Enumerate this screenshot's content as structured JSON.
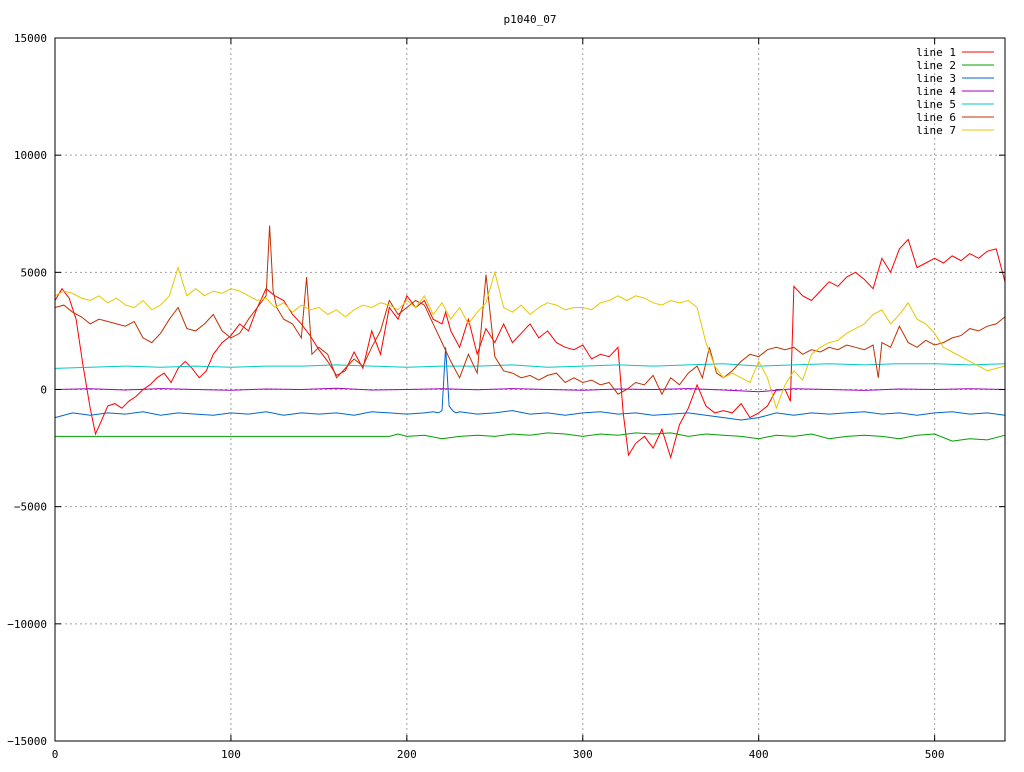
{
  "chart_data": {
    "type": "line",
    "title": "p1040_07",
    "xlabel": "",
    "ylabel": "",
    "xlim": [
      0,
      540
    ],
    "ylim": [
      -15000,
      15000
    ],
    "xticks": [
      0,
      100,
      200,
      300,
      400,
      500
    ],
    "yticks": [
      -15000,
      -10000,
      -5000,
      0,
      5000,
      10000,
      15000
    ],
    "grid": true,
    "legend_position": "top-right",
    "series": [
      {
        "name": "line 1",
        "color": "#ff0000",
        "x": [
          0,
          4,
          8,
          12,
          16,
          20,
          23,
          26,
          30,
          34,
          38,
          42,
          46,
          50,
          54,
          58,
          62,
          66,
          70,
          74,
          78,
          82,
          86,
          90,
          95,
          100,
          105,
          110,
          115,
          120,
          125,
          130,
          135,
          140,
          145,
          150,
          155,
          160,
          165,
          170,
          175,
          180,
          185,
          190,
          195,
          200,
          205,
          210,
          215,
          220,
          222,
          225,
          230,
          235,
          240,
          245,
          250,
          255,
          260,
          265,
          270,
          275,
          280,
          285,
          290,
          295,
          300,
          305,
          310,
          315,
          320,
          323,
          326,
          330,
          335,
          340,
          345,
          350,
          355,
          360,
          365,
          370,
          375,
          380,
          385,
          390,
          395,
          400,
          405,
          410,
          415,
          418,
          420,
          425,
          430,
          435,
          440,
          445,
          450,
          455,
          460,
          465,
          470,
          475,
          480,
          485,
          490,
          495,
          500,
          505,
          510,
          515,
          520,
          525,
          530,
          535,
          540
        ],
        "y": [
          3800,
          4300,
          3900,
          3000,
          1000,
          -800,
          -1900,
          -1400,
          -700,
          -600,
          -800,
          -500,
          -300,
          0,
          200,
          500,
          700,
          300,
          900,
          1200,
          900,
          500,
          800,
          1500,
          2000,
          2300,
          2800,
          2500,
          3500,
          4300,
          4000,
          3800,
          3200,
          2800,
          2300,
          1700,
          1200,
          600,
          800,
          1600,
          900,
          2500,
          1500,
          3500,
          3000,
          4000,
          3500,
          3800,
          3000,
          2800,
          3300,
          2500,
          1800,
          3000,
          1500,
          2600,
          2000,
          2800,
          2000,
          2400,
          2800,
          2200,
          2500,
          2000,
          1800,
          1700,
          1900,
          1300,
          1500,
          1400,
          1800,
          -1000,
          -2800,
          -2300,
          -2000,
          -2500,
          -1700,
          -2900,
          -1500,
          -800,
          200,
          -700,
          -1000,
          -900,
          -1000,
          -600,
          -1200,
          -1000,
          -700,
          0,
          0,
          -500,
          4400,
          4000,
          3800,
          4200,
          4600,
          4400,
          4800,
          5000,
          4700,
          4300,
          5600,
          5000,
          6000,
          6400,
          5200,
          5400,
          5600,
          5400,
          5700,
          5500,
          5800,
          5600,
          5900,
          6000,
          4600
        ]
      },
      {
        "name": "line 2",
        "color": "#00a000",
        "x": [
          0,
          20,
          40,
          60,
          80,
          100,
          120,
          140,
          160,
          180,
          190,
          195,
          200,
          210,
          220,
          230,
          240,
          250,
          260,
          270,
          280,
          290,
          300,
          310,
          320,
          330,
          340,
          350,
          360,
          370,
          380,
          390,
          400,
          410,
          420,
          430,
          440,
          450,
          460,
          470,
          480,
          490,
          500,
          510,
          520,
          530,
          540
        ],
        "y": [
          -2000,
          -2000,
          -2000,
          -2000,
          -2000,
          -2000,
          -2000,
          -2000,
          -2000,
          -2000,
          -2000,
          -1900,
          -2000,
          -1950,
          -2100,
          -2000,
          -1950,
          -2000,
          -1900,
          -1950,
          -1850,
          -1900,
          -2000,
          -1900,
          -1950,
          -1850,
          -1900,
          -1850,
          -2000,
          -1900,
          -1950,
          -2000,
          -2100,
          -1950,
          -2000,
          -1900,
          -2100,
          -2000,
          -1950,
          -2000,
          -2100,
          -1950,
          -1900,
          -2200,
          -2100,
          -2150,
          -1950
        ]
      },
      {
        "name": "line 3",
        "color": "#0066cc",
        "x": [
          0,
          10,
          20,
          30,
          40,
          50,
          60,
          70,
          80,
          90,
          100,
          110,
          120,
          130,
          140,
          150,
          160,
          170,
          180,
          190,
          200,
          210,
          215,
          218,
          220,
          222,
          224,
          226,
          228,
          230,
          240,
          250,
          260,
          270,
          280,
          290,
          300,
          310,
          320,
          330,
          340,
          350,
          360,
          370,
          380,
          390,
          400,
          410,
          420,
          430,
          440,
          450,
          460,
          470,
          480,
          490,
          500,
          510,
          520,
          530,
          540
        ],
        "y": [
          -1200,
          -1000,
          -1100,
          -1000,
          -1050,
          -950,
          -1100,
          -1000,
          -1050,
          -1100,
          -1000,
          -1050,
          -950,
          -1100,
          -1000,
          -1050,
          -1000,
          -1100,
          -950,
          -1000,
          -1050,
          -1000,
          -950,
          -1000,
          -900,
          1800,
          -700,
          -900,
          -1000,
          -950,
          -1050,
          -1000,
          -900,
          -1050,
          -1000,
          -1100,
          -1000,
          -950,
          -1050,
          -1000,
          -1100,
          -1050,
          -1000,
          -1100,
          -1200,
          -1300,
          -1200,
          -1000,
          -1100,
          -1000,
          -1050,
          -1000,
          -950,
          -1050,
          -1000,
          -1100,
          -1000,
          -950,
          -1050,
          -1000,
          -1100
        ]
      },
      {
        "name": "line 4",
        "color": "#a000c0",
        "x": [
          0,
          20,
          40,
          60,
          80,
          100,
          120,
          140,
          160,
          180,
          200,
          220,
          240,
          260,
          280,
          300,
          320,
          340,
          360,
          380,
          400,
          420,
          440,
          460,
          480,
          500,
          520,
          540
        ],
        "y": [
          0,
          30,
          -20,
          40,
          0,
          -30,
          20,
          0,
          50,
          -20,
          0,
          30,
          -10,
          40,
          0,
          -30,
          20,
          0,
          40,
          -20,
          -100,
          30,
          0,
          -40,
          20,
          0,
          30,
          0
        ]
      },
      {
        "name": "line 5",
        "color": "#00c8c8",
        "x": [
          0,
          20,
          40,
          60,
          80,
          100,
          120,
          140,
          160,
          180,
          200,
          220,
          240,
          260,
          280,
          300,
          320,
          340,
          360,
          380,
          400,
          420,
          440,
          460,
          480,
          500,
          520,
          540
        ],
        "y": [
          900,
          950,
          1000,
          950,
          1000,
          950,
          1000,
          1000,
          1050,
          1000,
          950,
          1000,
          1000,
          1050,
          950,
          1000,
          1050,
          1000,
          1050,
          1100,
          1000,
          1050,
          1100,
          1050,
          1100,
          1100,
          1050,
          1100
        ]
      },
      {
        "name": "line 6",
        "color": "#c03000",
        "x": [
          0,
          5,
          10,
          15,
          20,
          25,
          30,
          35,
          40,
          45,
          50,
          55,
          60,
          65,
          70,
          75,
          80,
          85,
          90,
          95,
          100,
          105,
          110,
          115,
          120,
          122,
          124,
          126,
          130,
          135,
          140,
          143,
          146,
          150,
          155,
          160,
          165,
          170,
          175,
          180,
          185,
          190,
          195,
          200,
          205,
          210,
          215,
          220,
          225,
          230,
          235,
          240,
          245,
          250,
          255,
          260,
          265,
          270,
          275,
          280,
          285,
          290,
          295,
          300,
          305,
          310,
          315,
          320,
          325,
          330,
          335,
          340,
          345,
          350,
          355,
          360,
          365,
          368,
          372,
          376,
          380,
          385,
          390,
          395,
          400,
          405,
          410,
          415,
          420,
          425,
          430,
          435,
          440,
          445,
          450,
          455,
          460,
          465,
          468,
          470,
          475,
          480,
          485,
          490,
          495,
          500,
          505,
          510,
          515,
          520,
          525,
          530,
          535,
          540
        ],
        "y": [
          3500,
          3600,
          3300,
          3100,
          2800,
          3000,
          2900,
          2800,
          2700,
          2900,
          2200,
          2000,
          2400,
          3000,
          3500,
          2600,
          2500,
          2800,
          3200,
          2500,
          2200,
          2400,
          3000,
          3500,
          4000,
          7000,
          4200,
          3500,
          3000,
          2800,
          2200,
          4800,
          1500,
          1800,
          1500,
          500,
          900,
          1300,
          1000,
          1800,
          2500,
          3800,
          3200,
          3500,
          3800,
          3600,
          2800,
          2000,
          1200,
          500,
          1500,
          700,
          4900,
          1400,
          800,
          700,
          500,
          600,
          400,
          600,
          700,
          300,
          500,
          300,
          400,
          200,
          300,
          -200,
          0,
          300,
          200,
          600,
          -200,
          500,
          200,
          700,
          1000,
          500,
          1800,
          700,
          500,
          800,
          1200,
          1500,
          1400,
          1700,
          1800,
          1700,
          1800,
          1500,
          1700,
          1600,
          1800,
          1700,
          1900,
          1800,
          1700,
          1900,
          500,
          2000,
          1800,
          2700,
          2000,
          1800,
          2100,
          1900,
          2000,
          2200,
          2300,
          2600,
          2500,
          2700,
          2800,
          3100
        ]
      },
      {
        "name": "line 7",
        "color": "#e6c800",
        "x": [
          0,
          5,
          10,
          15,
          20,
          25,
          30,
          35,
          40,
          45,
          50,
          55,
          60,
          65,
          70,
          75,
          80,
          85,
          90,
          95,
          100,
          105,
          110,
          115,
          120,
          125,
          130,
          135,
          140,
          145,
          150,
          155,
          160,
          165,
          170,
          175,
          180,
          185,
          190,
          195,
          200,
          205,
          210,
          215,
          220,
          225,
          230,
          235,
          240,
          245,
          250,
          255,
          260,
          265,
          270,
          275,
          280,
          285,
          290,
          295,
          300,
          305,
          310,
          315,
          320,
          325,
          330,
          335,
          340,
          345,
          350,
          355,
          360,
          365,
          370,
          375,
          380,
          385,
          390,
          395,
          400,
          405,
          410,
          415,
          420,
          425,
          430,
          435,
          440,
          445,
          450,
          455,
          460,
          465,
          470,
          475,
          480,
          485,
          490,
          495,
          500,
          505,
          510,
          515,
          520,
          525,
          530,
          535,
          540
        ],
        "y": [
          4000,
          4200,
          4100,
          3900,
          3800,
          4000,
          3700,
          3900,
          3600,
          3500,
          3800,
          3400,
          3600,
          4000,
          5200,
          4000,
          4300,
          4000,
          4200,
          4100,
          4300,
          4200,
          4000,
          3800,
          3900,
          3500,
          3700,
          3300,
          3600,
          3400,
          3500,
          3200,
          3400,
          3100,
          3400,
          3600,
          3500,
          3700,
          3600,
          3400,
          3800,
          3500,
          4000,
          3200,
          3700,
          3000,
          3500,
          2800,
          3300,
          3700,
          5000,
          3500,
          3300,
          3600,
          3200,
          3500,
          3700,
          3600,
          3400,
          3500,
          3500,
          3400,
          3700,
          3800,
          4000,
          3800,
          4000,
          3900,
          3700,
          3600,
          3800,
          3700,
          3800,
          3500,
          2000,
          1000,
          500,
          700,
          500,
          300,
          1200,
          500,
          -800,
          200,
          800,
          400,
          1500,
          1800,
          2000,
          2100,
          2400,
          2600,
          2800,
          3200,
          3400,
          2800,
          3200,
          3700,
          3000,
          2800,
          2400,
          1800,
          1600,
          1400,
          1200,
          1000,
          800,
          900,
          1000
        ]
      }
    ]
  }
}
